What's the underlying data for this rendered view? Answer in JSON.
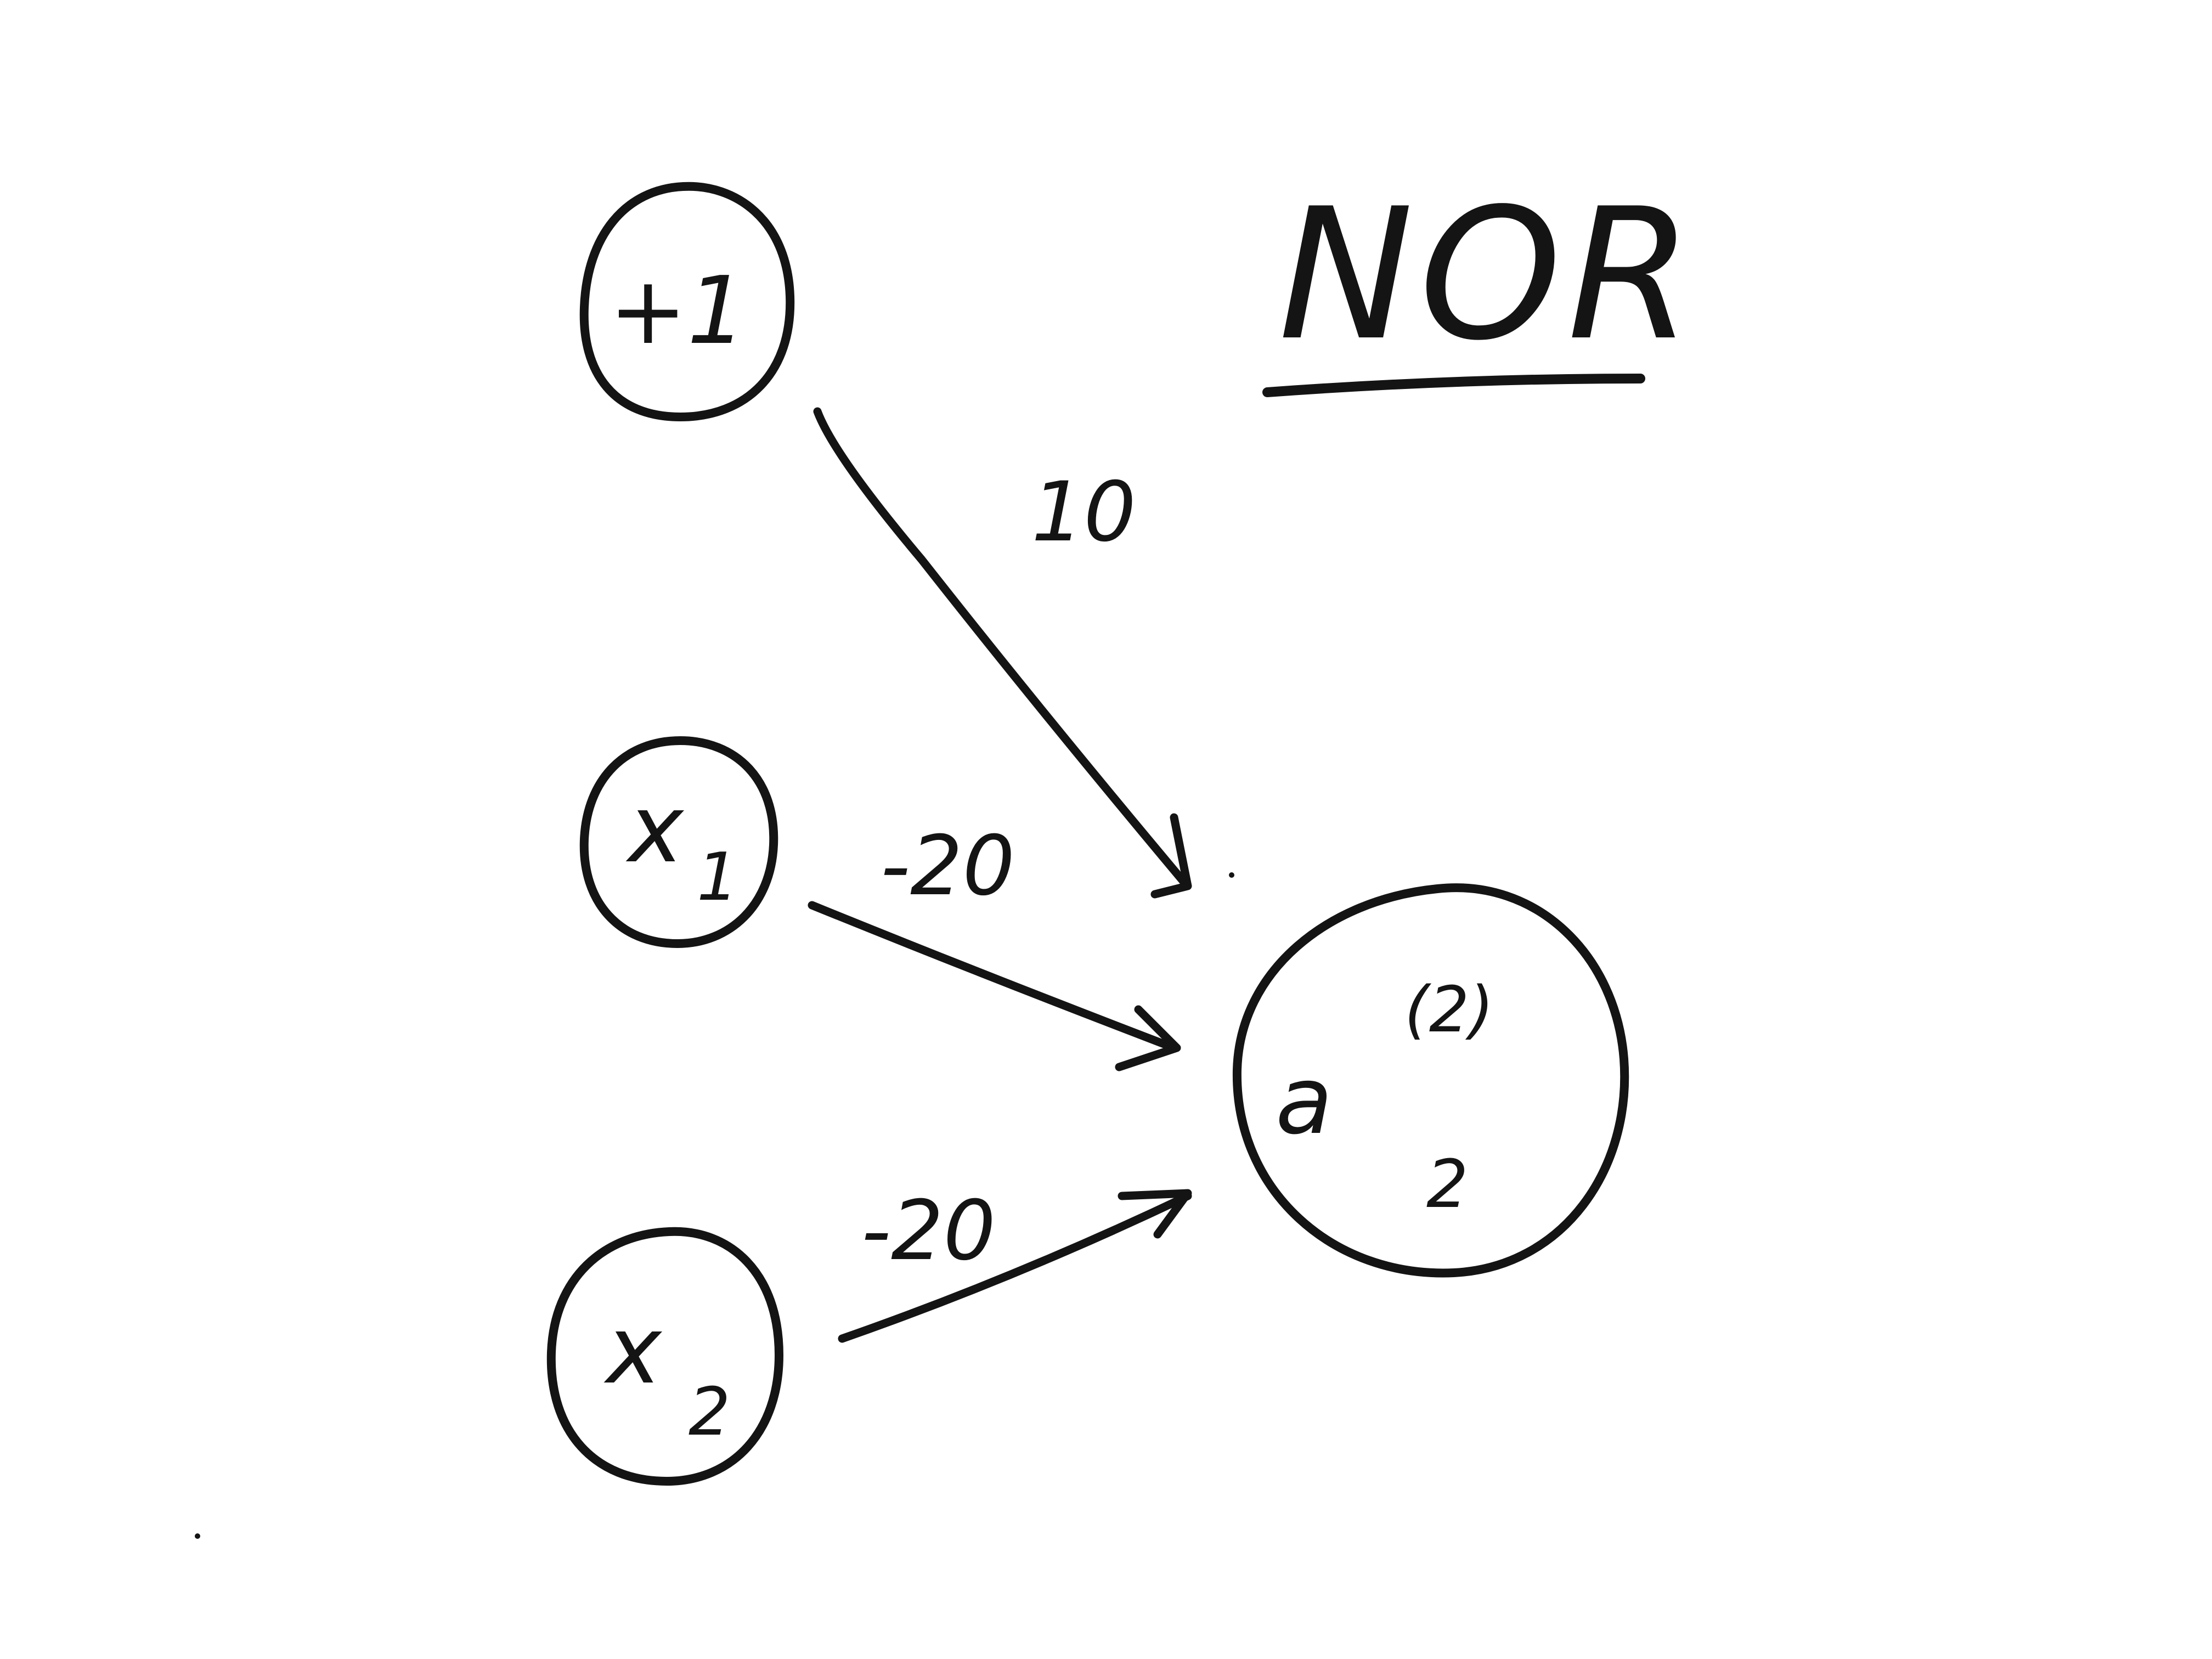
{
  "title": "NOR",
  "nodes": {
    "bias": {
      "label": "+1"
    },
    "x1": {
      "label": "x",
      "subscript": "1"
    },
    "x2": {
      "label": "x",
      "subscript": "2"
    },
    "output": {
      "label": "a",
      "superscript": "(2)",
      "subscript": "2"
    }
  },
  "edges": {
    "bias_to_output": {
      "weight": "10"
    },
    "x1_to_output": {
      "weight": "-20"
    },
    "x2_to_output": {
      "weight": "-20"
    }
  },
  "colors": {
    "ink": "#141414",
    "background": "#ffffff"
  }
}
